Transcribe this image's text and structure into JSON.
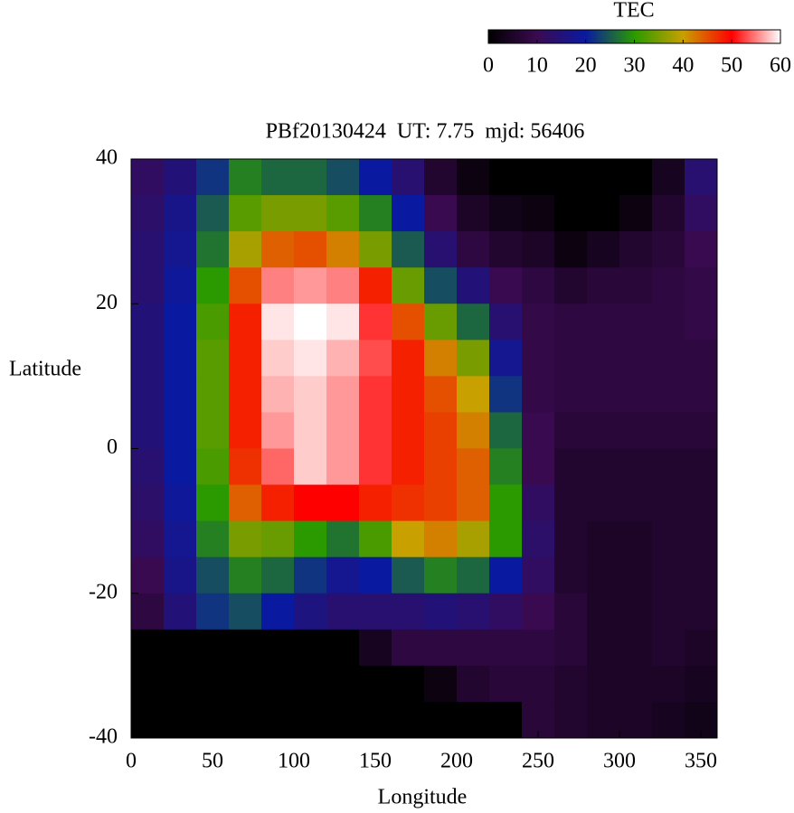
{
  "chart_data": {
    "type": "heatmap",
    "title": "PBf20130424  UT: 7.75  mjd: 56406",
    "x_label": "Longitude",
    "y_label": "Latitude",
    "colorbar_title": "TEC",
    "xlim": [
      0,
      360
    ],
    "ylim": [
      -40,
      40
    ],
    "xticks": [
      0,
      50,
      100,
      150,
      200,
      250,
      300,
      350
    ],
    "yticks": [
      40,
      20,
      0,
      -20,
      -40
    ],
    "zlim": [
      0,
      60
    ],
    "zticks": [
      0,
      10,
      20,
      30,
      40,
      50,
      60
    ],
    "colorscale": [
      "#000000",
      "#3a0a50",
      "#0a1aa0",
      "#2a9a00",
      "#c8a000",
      "#ff0000",
      "#ffffff"
    ],
    "xbins": [
      0,
      20,
      40,
      60,
      80,
      100,
      120,
      140,
      160,
      180,
      200,
      220,
      240,
      260,
      280,
      300,
      320,
      340,
      360
    ],
    "ybins": [
      40,
      35,
      30,
      25,
      20,
      15,
      10,
      5,
      0,
      -5,
      -10,
      -15,
      -20,
      -25,
      -30,
      -35,
      -40
    ],
    "z": [
      [
        12,
        15,
        22,
        28,
        26,
        26,
        24,
        20,
        14,
        6,
        2,
        0,
        0,
        0,
        0,
        0,
        4,
        14
      ],
      [
        13,
        17,
        25,
        33,
        35,
        35,
        33,
        28,
        20,
        10,
        5,
        3,
        2,
        0,
        0,
        2,
        6,
        12
      ],
      [
        14,
        18,
        27,
        38,
        44,
        45,
        42,
        35,
        25,
        14,
        8,
        6,
        5,
        2,
        4,
        6,
        7,
        10
      ],
      [
        14,
        19,
        30,
        45,
        55,
        56,
        55,
        48,
        34,
        24,
        15,
        10,
        8,
        6,
        7,
        7,
        8,
        9
      ],
      [
        15,
        20,
        32,
        48,
        59,
        60,
        59,
        52,
        45,
        34,
        26,
        14,
        9,
        8,
        8,
        8,
        8,
        9
      ],
      [
        15,
        20,
        33,
        48,
        58,
        59,
        57,
        53,
        48,
        42,
        35,
        18,
        9,
        8,
        8,
        8,
        8,
        8
      ],
      [
        15,
        20,
        33,
        48,
        57,
        58,
        56,
        52,
        48,
        45,
        40,
        22,
        9,
        8,
        8,
        8,
        8,
        8
      ],
      [
        15,
        20,
        33,
        48,
        56,
        58,
        56,
        52,
        48,
        46,
        42,
        26,
        10,
        7,
        7,
        7,
        7,
        7
      ],
      [
        14,
        20,
        32,
        47,
        54,
        58,
        56,
        52,
        48,
        46,
        44,
        28,
        10,
        6,
        6,
        6,
        6,
        6
      ],
      [
        13,
        19,
        30,
        44,
        48,
        50,
        50,
        48,
        47,
        46,
        44,
        30,
        12,
        6,
        6,
        6,
        6,
        6
      ],
      [
        12,
        18,
        28,
        35,
        34,
        30,
        27,
        32,
        40,
        42,
        38,
        30,
        13,
        6,
        5,
        5,
        6,
        6
      ],
      [
        10,
        17,
        24,
        28,
        26,
        22,
        18,
        20,
        25,
        28,
        26,
        20,
        12,
        6,
        5,
        5,
        6,
        6
      ],
      [
        8,
        15,
        22,
        24,
        20,
        16,
        14,
        14,
        14,
        15,
        14,
        12,
        10,
        7,
        5,
        5,
        6,
        6
      ],
      [
        0,
        0,
        0,
        0,
        0,
        0,
        0,
        4,
        8,
        8,
        8,
        8,
        8,
        7,
        5,
        5,
        6,
        5
      ],
      [
        0,
        0,
        0,
        0,
        0,
        0,
        0,
        0,
        0,
        2,
        6,
        7,
        7,
        6,
        5,
        5,
        5,
        4
      ],
      [
        0,
        0,
        0,
        0,
        0,
        0,
        0,
        0,
        0,
        0,
        0,
        0,
        7,
        6,
        5,
        5,
        4,
        3
      ]
    ]
  }
}
